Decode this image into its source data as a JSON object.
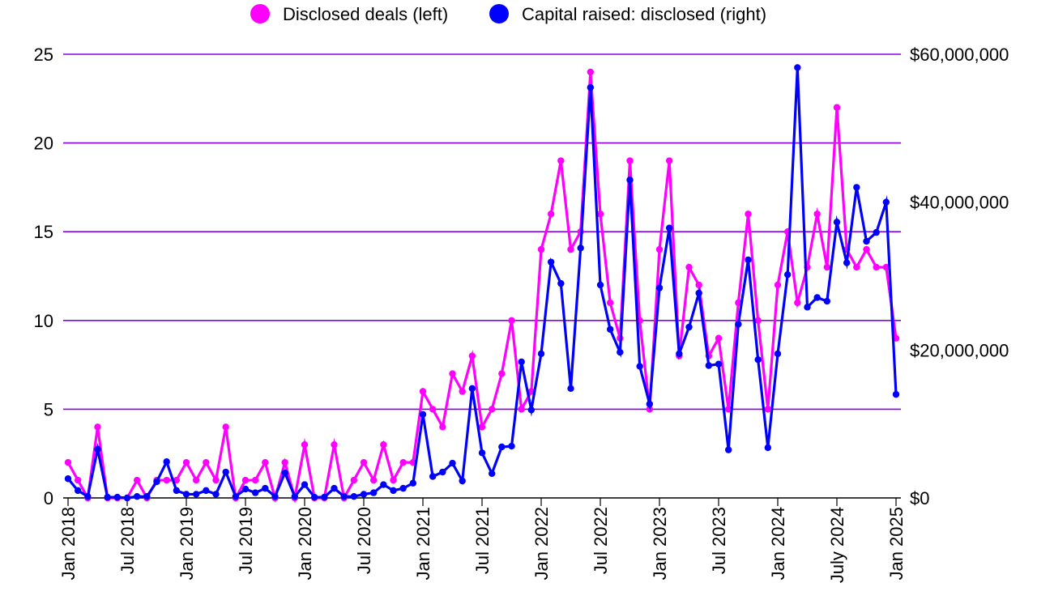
{
  "chart_data": {
    "type": "line",
    "title": "",
    "legend": [
      {
        "label": "Disclosed deals (left)",
        "color": "#ff00ff"
      },
      {
        "label": "Capital raised: disclosed (right)",
        "color": "#0000ff"
      }
    ],
    "left_axis": {
      "min": 0,
      "max": 25,
      "ticks": [
        "0",
        "5",
        "10",
        "15",
        "20",
        "25"
      ],
      "tick_values": [
        0,
        5,
        10,
        15,
        20,
        25
      ]
    },
    "right_axis": {
      "min": 0,
      "max": 60000000,
      "ticks": [
        "$0",
        "$20,000,000",
        "$40,000,000",
        "$60,000,000"
      ],
      "tick_values": [
        0,
        20000000,
        40000000,
        60000000
      ]
    },
    "x_ticks": [
      {
        "label": "Jan 2018",
        "index": 0
      },
      {
        "label": "Jul 2018",
        "index": 6
      },
      {
        "label": "Jan 2019",
        "index": 12
      },
      {
        "label": "Jul 2019",
        "index": 18
      },
      {
        "label": "Jan 2020",
        "index": 24
      },
      {
        "label": "Jul 2020",
        "index": 30
      },
      {
        "label": "Jan 2021",
        "index": 36
      },
      {
        "label": "Jul 2021",
        "index": 42
      },
      {
        "label": "Jan 2022",
        "index": 48
      },
      {
        "label": "Jul 2022",
        "index": 54
      },
      {
        "label": "Jan 2023",
        "index": 60
      },
      {
        "label": "Jul 2023",
        "index": 66
      },
      {
        "label": "Jan 2024",
        "index": 72
      },
      {
        "label": "July 2024",
        "index": 78
      },
      {
        "label": "Jan 2025",
        "index": 84
      }
    ],
    "grid": true,
    "series": [
      {
        "name": "Disclosed deals (left)",
        "axis": "left",
        "color": "#ff00ff",
        "values": [
          2,
          1,
          0,
          4,
          0,
          0,
          0,
          1,
          0,
          1,
          1,
          1,
          2,
          1,
          2,
          1,
          4,
          0,
          1,
          1,
          2,
          0,
          2,
          0,
          3,
          0,
          0,
          3,
          0,
          1,
          2,
          1,
          3,
          1,
          2,
          2,
          6,
          5,
          4,
          7,
          6,
          8,
          4,
          5,
          7,
          10,
          5,
          6,
          14,
          16,
          19,
          14,
          15,
          24,
          16,
          11,
          9,
          19,
          10,
          5,
          14,
          19,
          8,
          13,
          12,
          8,
          9,
          5,
          11,
          16,
          10,
          5,
          12,
          15,
          11,
          13,
          16,
          13,
          22,
          14,
          13,
          14,
          13,
          13,
          9
        ]
      },
      {
        "name": "Capital raised: disclosed (right)",
        "axis": "right",
        "color": "#0000ff",
        "values": [
          2600000,
          1000000,
          200000,
          6600000,
          100000,
          100000,
          0,
          200000,
          200000,
          2200000,
          4900000,
          1000000,
          500000,
          500000,
          1000000,
          500000,
          3500000,
          200000,
          1200000,
          700000,
          1300000,
          200000,
          3400000,
          200000,
          1800000,
          100000,
          100000,
          1300000,
          200000,
          200000,
          500000,
          700000,
          1800000,
          1000000,
          1300000,
          2000000,
          11300000,
          2900000,
          3500000,
          4700000,
          2300000,
          14800000,
          6100000,
          3300000,
          6900000,
          7000000,
          18400000,
          11900000,
          19500000,
          31900000,
          29000000,
          14800000,
          33800000,
          55500000,
          28800000,
          22800000,
          19700000,
          43000000,
          17800000,
          12700000,
          28400000,
          36500000,
          19500000,
          23100000,
          27700000,
          17900000,
          18100000,
          6500000,
          23500000,
          32200000,
          18700000,
          6800000,
          19500000,
          30200000,
          58200000,
          25800000,
          27100000,
          26600000,
          37300000,
          31800000,
          42000000,
          34700000,
          35900000,
          40000000,
          14000000
        ]
      }
    ]
  }
}
